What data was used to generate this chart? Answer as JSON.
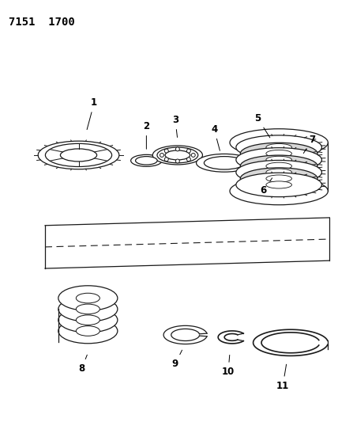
{
  "title": "7151  1700",
  "bg_color": "#ffffff",
  "line_color": "#1a1a1a",
  "label_color": "#000000",
  "title_fontsize": 10,
  "label_fontsize": 8.5,
  "figsize": [
    4.28,
    5.33
  ],
  "dpi": 100
}
